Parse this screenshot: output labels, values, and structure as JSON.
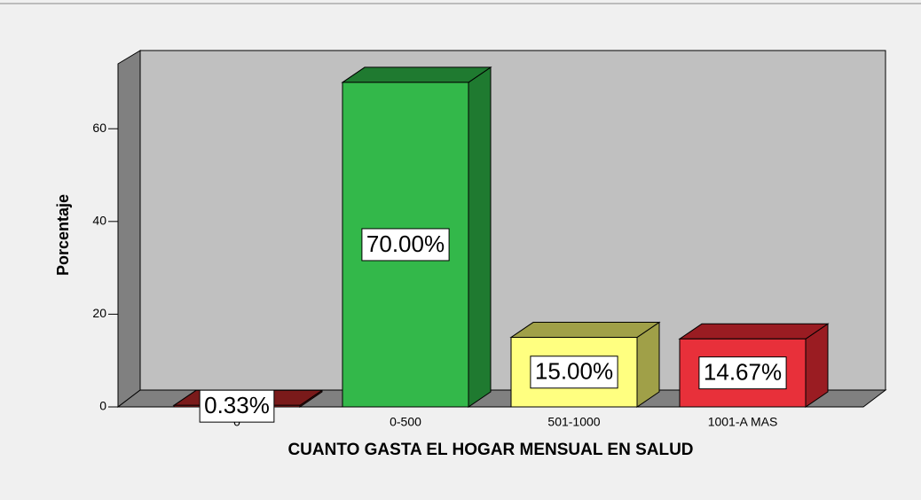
{
  "chart_data": {
    "type": "bar3d",
    "x_label": "CUANTO GASTA EL HOGAR MENSUAL EN SALUD",
    "y_label": "Porcentaje",
    "categories": [
      "0",
      "0-500",
      "501-1000",
      "1001-A MAS"
    ],
    "values": [
      0.33,
      70,
      15,
      14.67
    ],
    "value_labels": [
      "0.33%",
      "70.00%",
      "15.00%",
      "14.67%"
    ],
    "colors": [
      "#b02a2a",
      "#33b84a",
      "#ffff80",
      "#e8303a"
    ],
    "side_colors": [
      "#7a1a1a",
      "#1f7a30",
      "#a0a048",
      "#9a1c22"
    ],
    "ylim": [
      0,
      74
    ],
    "yticks": [
      0,
      20,
      40,
      60
    ]
  }
}
